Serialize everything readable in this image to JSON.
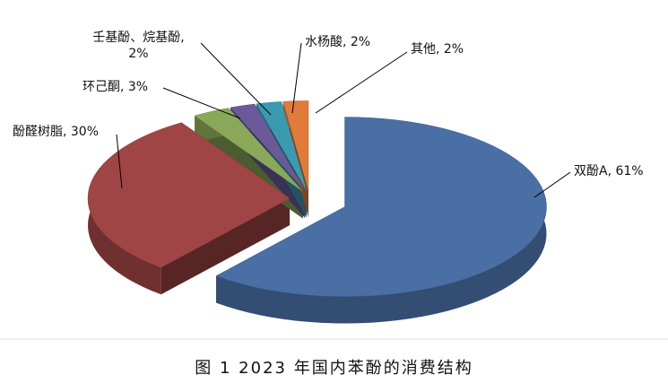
{
  "chart_data": {
    "type": "pie3d",
    "title": "图 1  2023 年国内苯酚的消费结构",
    "values": [
      61,
      30,
      3,
      2,
      2,
      2
    ],
    "value_labels": [
      "双酚A, 61%",
      "酚醛树脂, 30%",
      "环己酮, 3%",
      "壬基酚、烷基酚, 2%",
      "水杨酸, 2%",
      "其他, 2%"
    ],
    "colors": [
      "#4a6fa5",
      "#a04545",
      "#8aa85a",
      "#6a5a9a",
      "#3a9ab0",
      "#e07b39"
    ]
  }
}
